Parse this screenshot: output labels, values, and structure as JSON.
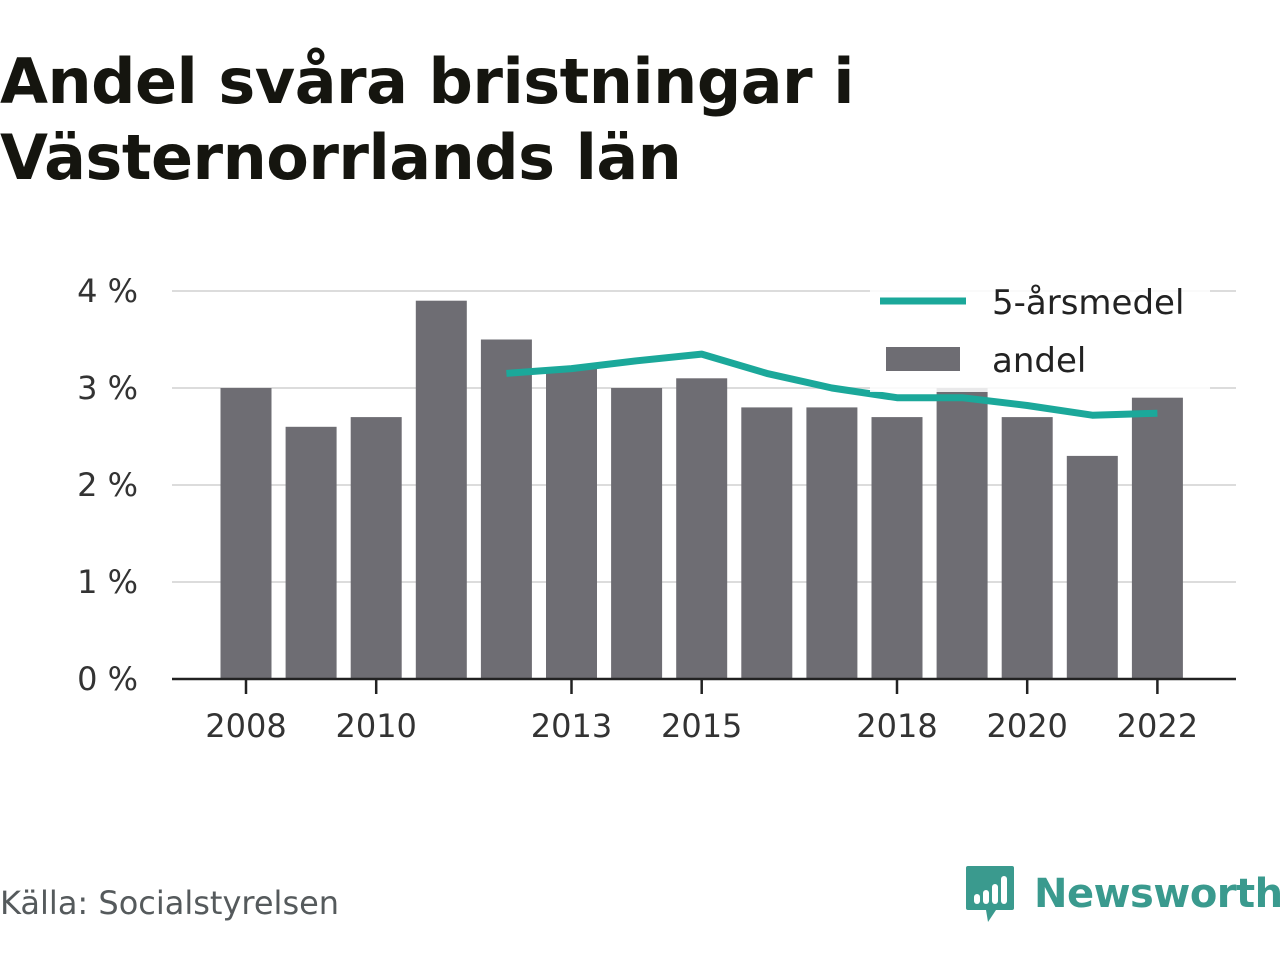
{
  "title_line1": "Andel svåra bristningar i",
  "title_line2": "Västernorrlands län",
  "source": "Källa: Socialstyrelsen",
  "brand": "Newsworthy",
  "colors": {
    "bar": "#6e6d73",
    "line": "#1ba89a",
    "grid": "#dcdcdc",
    "axis": "#222222",
    "brand": "#3a9a8e"
  },
  "chart_data": {
    "type": "bar",
    "x": [
      2008,
      2009,
      2010,
      2011,
      2012,
      2013,
      2014,
      2015,
      2016,
      2017,
      2018,
      2019,
      2020,
      2021,
      2022
    ],
    "x_tick_labels": [
      "2008",
      "2010",
      "2013",
      "2015",
      "2018",
      "2020",
      "2022"
    ],
    "y_tick_labels": [
      "0 %",
      "1 %",
      "2 %",
      "3 %",
      "4 %"
    ],
    "ylim": [
      0,
      4
    ],
    "grid": true,
    "legend_position": "top-right",
    "series": [
      {
        "name": "andel",
        "type": "bar",
        "values": [
          3.0,
          2.6,
          2.7,
          3.9,
          3.5,
          3.2,
          3.0,
          3.1,
          2.8,
          2.8,
          2.7,
          3.0,
          2.7,
          2.3,
          2.9
        ]
      },
      {
        "name": "5-årsmedel",
        "type": "line",
        "values": [
          null,
          null,
          null,
          null,
          3.15,
          3.2,
          3.28,
          3.35,
          3.15,
          3.0,
          2.9,
          2.9,
          2.82,
          2.72,
          2.74
        ]
      }
    ]
  }
}
